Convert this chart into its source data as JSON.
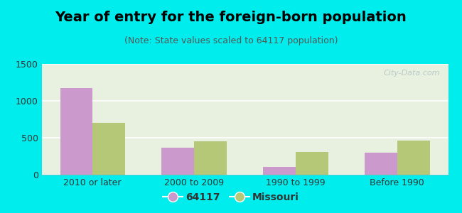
{
  "title": "Year of entry for the foreign-born population",
  "subtitle": "(Note: State values scaled to 64117 population)",
  "categories": [
    "2010 or later",
    "2000 to 2009",
    "1990 to 1999",
    "Before 1990"
  ],
  "values_64117": [
    1175,
    365,
    110,
    300
  ],
  "values_missouri": [
    700,
    450,
    305,
    460
  ],
  "color_64117": "#cc99cc",
  "color_missouri": "#b5c878",
  "background_outer": "#00eded",
  "background_inner_top": "#e8f0e0",
  "background_inner_bottom": "#d0e8d0",
  "ylim": [
    0,
    1500
  ],
  "yticks": [
    0,
    500,
    1000,
    1500
  ],
  "legend_label_64117": "64117",
  "legend_label_missouri": "Missouri",
  "bar_width": 0.32,
  "title_fontsize": 14,
  "subtitle_fontsize": 9,
  "tick_fontsize": 9,
  "legend_fontsize": 10,
  "watermark_text": "City-Data.com",
  "grid_color": "#ffffff"
}
